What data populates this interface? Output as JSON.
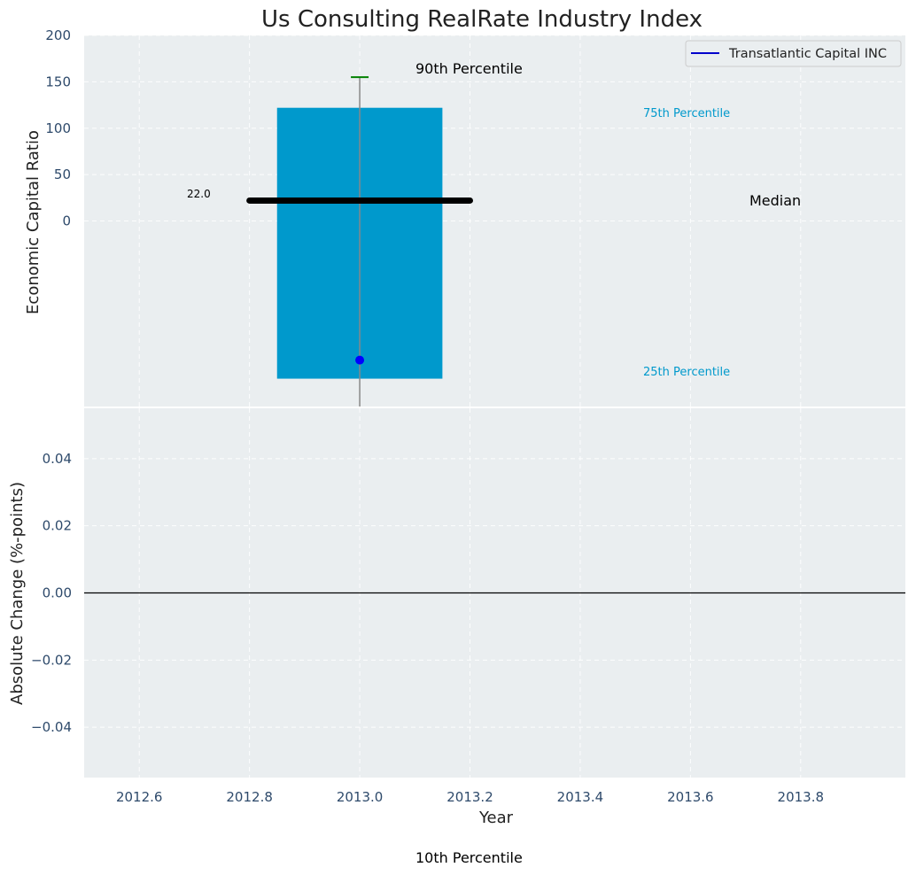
{
  "chart_data": [
    {
      "type": "box",
      "title": "Us Consulting RealRate Industry Index",
      "ylabel": "Economic Capital Ratio",
      "ylim": [
        -200,
        200
      ],
      "yticks": [
        0,
        50,
        100,
        150,
        200
      ],
      "xlim": [
        2012.5,
        2013.99
      ],
      "grid": true,
      "x": 2013.0,
      "box": {
        "q1": -170,
        "q3": 122,
        "median": 22.0,
        "p90": 155,
        "p10": -200,
        "color": "#0099cc"
      },
      "median_label": "22.0",
      "company_point": {
        "x": 2013.0,
        "y": -150,
        "color": "#0000ff"
      },
      "annotations": {
        "p90": "90th Percentile",
        "p75": "75th Percentile",
        "median": "Median",
        "p25": "25th Percentile",
        "p10": "10th Percentile"
      },
      "legend": {
        "placement": "top-right",
        "entries": [
          {
            "label": "Transatlantic Capital INC",
            "color": "#0000cc"
          }
        ]
      }
    },
    {
      "type": "line",
      "xlabel": "Year",
      "ylabel": "Absolute Change (%-points)",
      "xlim": [
        2012.5,
        2013.99
      ],
      "xticks": [
        2012.6,
        2012.8,
        2013.0,
        2013.2,
        2013.4,
        2013.6,
        2013.8
      ],
      "ylim": [
        -0.055,
        0.055
      ],
      "yticks": [
        -0.04,
        -0.02,
        0.0,
        0.02,
        0.04
      ],
      "ytick_labels": [
        "−0.04",
        "−0.02",
        "0.00",
        "0.02",
        "0.04"
      ],
      "reference_line_y": 0.0,
      "grid": true
    }
  ]
}
